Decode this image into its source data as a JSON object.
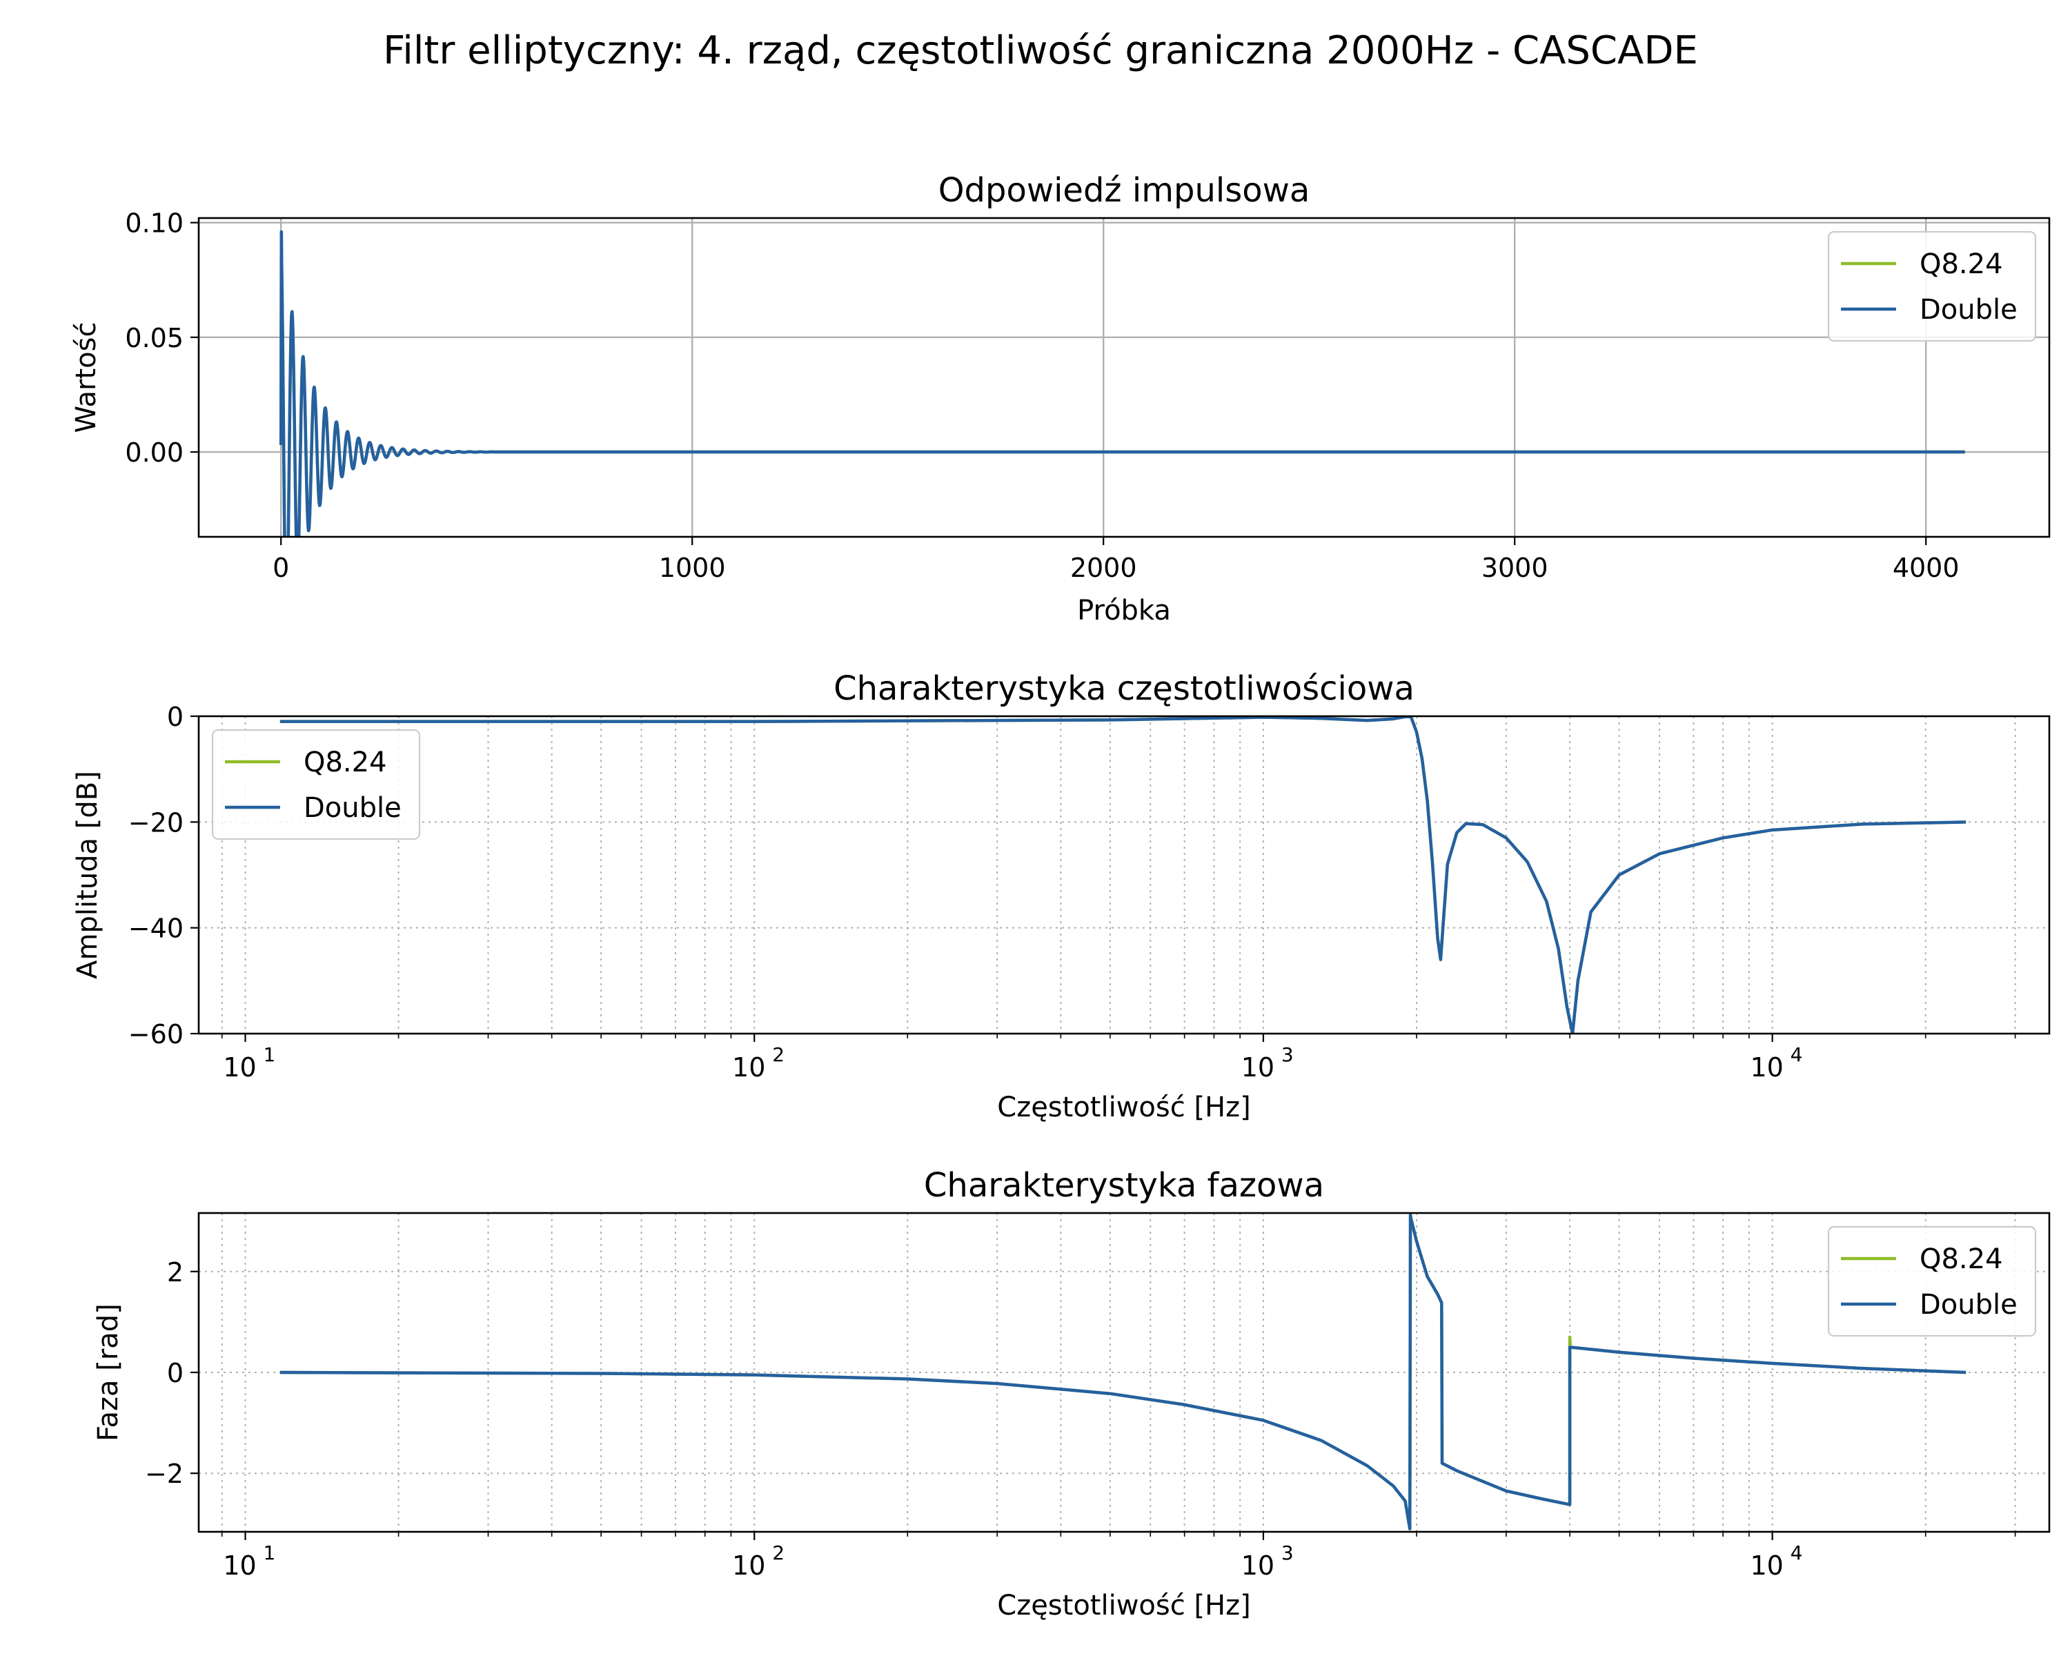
{
  "figure": {
    "suptitle": "Filtr elliptyczny: 4. rząd, częstotliwość graniczna 2000Hz - CASCADE"
  },
  "colors": {
    "q824": "#8fbc2a",
    "double": "#2560a0",
    "grid_solid": "#b0b0b0",
    "grid_dotted": "#b0b0b0"
  },
  "chart_data": [
    {
      "type": "line",
      "title": "Odpowiedź impulsowa",
      "xlabel": "Próbka",
      "ylabel": "Wartość",
      "xlim": [
        -200,
        4300
      ],
      "ylim": [
        -0.037,
        0.102
      ],
      "xticks": [
        0,
        1000,
        2000,
        3000,
        4000
      ],
      "xtick_labels": [
        "0",
        "1000",
        "2000",
        "3000",
        "4000"
      ],
      "yticks": [
        0.1,
        0.05,
        0.0
      ],
      "ytick_labels": [
        "0.10",
        "0.05",
        "0.00"
      ],
      "xscale": "linear",
      "grid": "solid",
      "legend": "upper right",
      "series": [
        {
          "name": "Q8.24",
          "x": [
            0,
            4095
          ],
          "y": [
            0.0,
            0.0
          ]
        },
        {
          "name": "Double",
          "x": [
            0,
            4095
          ],
          "y": [
            0.0,
            0.0
          ]
        }
      ],
      "impulse": {
        "first": 0.003,
        "peak": 0.096,
        "decay_samples": 520,
        "n": 4096
      }
    },
    {
      "type": "line",
      "title": "Charakterystyka częstotliwościowa",
      "xlabel": "Częstotliwość [Hz]",
      "ylabel": "Amplituda [dB]",
      "xscale": "log",
      "xlim": [
        8.1,
        35000
      ],
      "ylim": [
        -60,
        0
      ],
      "xticks": [
        10,
        100,
        1000,
        10000
      ],
      "xtick_labels": [
        {
          "base": "10",
          "exp": "1"
        },
        {
          "base": "10",
          "exp": "2"
        },
        {
          "base": "10",
          "exp": "3"
        },
        {
          "base": "10",
          "exp": "4"
        }
      ],
      "yticks": [
        0,
        -20,
        -40,
        -60
      ],
      "ytick_labels": [
        "0",
        "−20",
        "−40",
        "−60"
      ],
      "grid": "dotted",
      "legend": "upper left",
      "series": [
        {
          "name": "Q8.24",
          "x": [
            11.7,
            100,
            500,
            1000,
            1300,
            1600,
            1800,
            1900,
            1950,
            2000,
            2050,
            2100,
            2150,
            2200,
            2230,
            2300,
            2400,
            2500,
            2700,
            3000,
            3300,
            3600,
            3800,
            3950,
            4050,
            4150,
            4400,
            5000,
            6000,
            8000,
            10000,
            15000,
            24000
          ],
          "y": [
            -1.0,
            -1.0,
            -0.7,
            -0.2,
            -0.4,
            -0.8,
            -0.5,
            -0.1,
            -0.1,
            -3,
            -8,
            -16,
            -28,
            -42,
            -46,
            -28,
            -22,
            -20.3,
            -20.5,
            -23,
            -27.5,
            -35,
            -44,
            -55,
            -60,
            -50,
            -37,
            -30,
            -26,
            -23,
            -21.5,
            -20.4,
            -20
          ]
        },
        {
          "name": "Double",
          "x": [
            11.7,
            100,
            500,
            1000,
            1300,
            1600,
            1800,
            1900,
            1950,
            2000,
            2050,
            2100,
            2150,
            2200,
            2230,
            2300,
            2400,
            2500,
            2700,
            3000,
            3300,
            3600,
            3800,
            3950,
            4050,
            4150,
            4400,
            5000,
            6000,
            8000,
            10000,
            15000,
            24000
          ],
          "y": [
            -1.0,
            -1.0,
            -0.7,
            -0.2,
            -0.4,
            -0.8,
            -0.5,
            -0.1,
            -0.1,
            -3,
            -8,
            -16,
            -28,
            -42,
            -46,
            -28,
            -22,
            -20.3,
            -20.5,
            -23,
            -27.5,
            -35,
            -44,
            -55,
            -60,
            -50,
            -37,
            -30,
            -26,
            -23,
            -21.5,
            -20.4,
            -20
          ]
        }
      ]
    },
    {
      "type": "line",
      "title": "Charakterystyka fazowa",
      "xlabel": "Częstotliwość [Hz]",
      "ylabel": "Faza [rad]",
      "xscale": "log",
      "xlim": [
        8.1,
        35000
      ],
      "ylim": [
        -3.16,
        3.16
      ],
      "xticks": [
        10,
        100,
        1000,
        10000
      ],
      "xtick_labels": [
        {
          "base": "10",
          "exp": "1"
        },
        {
          "base": "10",
          "exp": "2"
        },
        {
          "base": "10",
          "exp": "3"
        },
        {
          "base": "10",
          "exp": "4"
        }
      ],
      "yticks": [
        2,
        0,
        -2
      ],
      "ytick_labels": [
        "2",
        "0",
        "−2"
      ],
      "grid": "dotted",
      "legend": "upper right",
      "series": [
        {
          "name": "Q8.24",
          "x": [
            11.7,
            50,
            100,
            200,
            300,
            500,
            700,
            1000,
            1300,
            1600,
            1800,
            1900,
            1940,
            1945,
            1950,
            2000,
            2100,
            2200,
            2240,
            2245,
            2400,
            3000,
            3500,
            4000,
            4000,
            4010,
            5000,
            7000,
            10000,
            15000,
            24000
          ],
          "y": [
            0.0,
            -0.02,
            -0.05,
            -0.13,
            -0.22,
            -0.42,
            -0.64,
            -0.95,
            -1.35,
            -1.85,
            -2.25,
            -2.55,
            -3.1,
            3.12,
            3.05,
            2.6,
            1.9,
            1.55,
            1.38,
            -1.8,
            -1.95,
            -2.35,
            -2.5,
            -2.62,
            0.7,
            0.5,
            0.4,
            0.28,
            0.18,
            0.08,
            0.0
          ]
        },
        {
          "name": "Double",
          "x": [
            11.7,
            50,
            100,
            200,
            300,
            500,
            700,
            1000,
            1300,
            1600,
            1800,
            1900,
            1940,
            1945,
            1950,
            2000,
            2100,
            2200,
            2240,
            2245,
            2400,
            3000,
            3500,
            4000,
            4000,
            4010,
            5000,
            7000,
            10000,
            15000,
            24000
          ],
          "y": [
            0.0,
            -0.02,
            -0.05,
            -0.13,
            -0.22,
            -0.42,
            -0.64,
            -0.95,
            -1.35,
            -1.85,
            -2.25,
            -2.55,
            -3.1,
            3.12,
            3.05,
            2.6,
            1.9,
            1.55,
            1.38,
            -1.8,
            -1.95,
            -2.35,
            -2.5,
            -2.62,
            0.5,
            0.5,
            0.4,
            0.28,
            0.18,
            0.08,
            0.0
          ]
        }
      ]
    }
  ]
}
